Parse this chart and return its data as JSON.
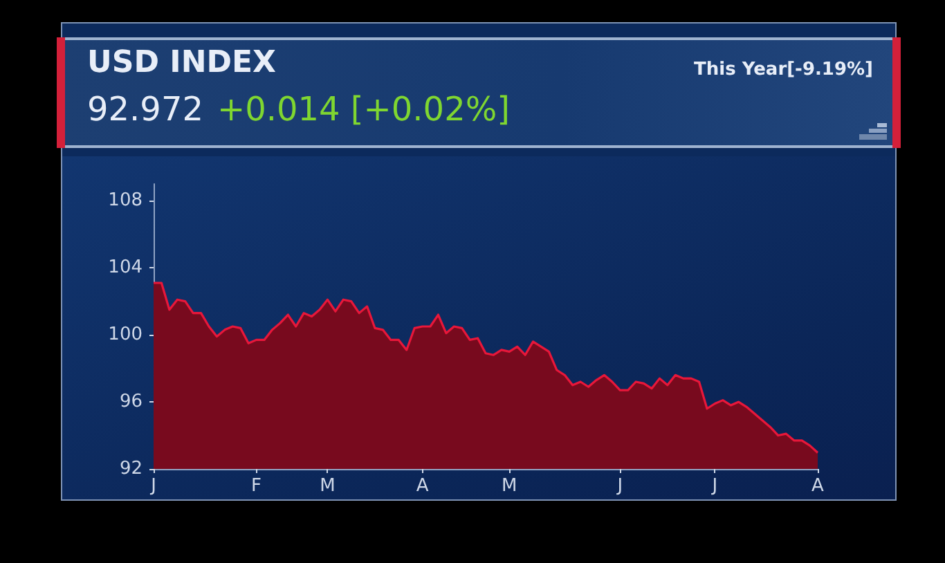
{
  "chart_data": {
    "type": "area",
    "title": "USD INDEX",
    "subtitle": "92.972",
    "annotations": [
      "+0.014 [+0.02%]",
      "This Year[-9.19%]"
    ],
    "categories": [
      "J",
      null,
      null,
      null,
      null,
      null,
      null,
      null,
      null,
      null,
      null,
      null,
      null,
      "F",
      null,
      null,
      null,
      null,
      null,
      null,
      null,
      null,
      "M",
      null,
      null,
      null,
      null,
      null,
      null,
      null,
      null,
      null,
      null,
      null,
      "A",
      null,
      null,
      null,
      null,
      null,
      null,
      null,
      null,
      null,
      null,
      "M",
      null,
      null,
      null,
      null,
      null,
      null,
      null,
      null,
      null,
      null,
      null,
      null,
      null,
      "J",
      null,
      null,
      null,
      null,
      null,
      null,
      null,
      null,
      null,
      null,
      null,
      "J",
      null,
      null,
      null,
      null,
      null,
      null,
      null,
      null,
      null,
      null,
      null,
      null,
      "A"
    ],
    "series": [
      {
        "color": "#e8173a",
        "values": [
          103.1,
          103.1,
          101.5,
          102.1,
          102.0,
          101.3,
          101.3,
          100.5,
          99.9,
          100.3,
          100.5,
          100.4,
          99.5,
          99.7,
          99.7,
          100.3,
          100.7,
          101.2,
          100.5,
          101.3,
          101.1,
          101.5,
          102.1,
          101.4,
          102.1,
          102.0,
          101.3,
          101.7,
          100.4,
          100.3,
          99.7,
          99.7,
          99.1,
          100.4,
          100.5,
          100.5,
          101.2,
          100.1,
          100.5,
          100.4,
          99.7,
          99.8,
          98.9,
          98.8,
          99.1,
          99.0,
          99.3,
          98.8,
          99.6,
          99.3,
          99.0,
          97.9,
          97.6,
          97.0,
          97.2,
          96.9,
          97.3,
          97.6,
          97.2,
          96.7,
          96.7,
          97.2,
          97.1,
          96.8,
          97.4,
          97.0,
          97.6,
          97.4,
          97.4,
          97.2,
          95.6,
          95.9,
          96.1,
          95.8,
          96.0,
          95.7,
          95.3,
          94.9,
          94.5,
          94.0,
          94.1,
          93.7,
          93.7,
          93.4,
          92.972
        ]
      }
    ],
    "ylim": [
      92,
      109
    ],
    "yticks": [
      92,
      96,
      100,
      104,
      108
    ],
    "grid": false,
    "marker": "none",
    "line_style": "solid"
  }
}
